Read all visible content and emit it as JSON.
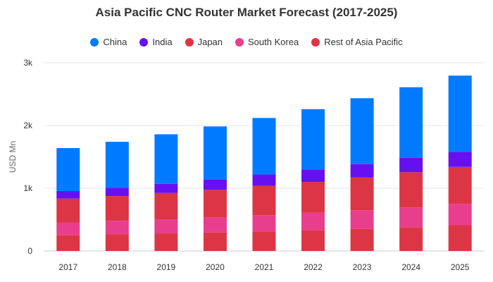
{
  "chart_data": {
    "type": "bar",
    "stacked": true,
    "title": "Asia Pacific CNC Router Market Forecast (2017-2025)",
    "xlabel": "",
    "ylabel": "USD Mn",
    "ylim": [
      0,
      3000
    ],
    "yticks": [
      0,
      1000,
      2000,
      3000
    ],
    "ytick_labels": [
      "0",
      "1k",
      "2k",
      "3k"
    ],
    "grid": true,
    "legend_position": "top",
    "categories": [
      "2017",
      "2018",
      "2019",
      "2020",
      "2021",
      "2022",
      "2023",
      "2024",
      "2025"
    ],
    "series": [
      {
        "name": "Rest of Asia Pacific",
        "color": "#dc3545",
        "values": [
          250,
          265,
          280,
          295,
          310,
          330,
          350,
          375,
          410
        ]
      },
      {
        "name": "South Korea",
        "color": "#e83e8c",
        "values": [
          205,
          215,
          225,
          240,
          260,
          280,
          300,
          320,
          340
        ]
      },
      {
        "name": "Japan",
        "color": "#dc3545",
        "values": [
          380,
          395,
          420,
          440,
          470,
          490,
          520,
          560,
          590
        ]
      },
      {
        "name": "India",
        "color": "#6610f2",
        "values": [
          120,
          130,
          145,
          160,
          180,
          200,
          215,
          230,
          240
        ]
      },
      {
        "name": "China",
        "color": "#007bff",
        "values": [
          685,
          735,
          790,
          850,
          900,
          960,
          1050,
          1125,
          1215
        ]
      }
    ]
  },
  "legend": [
    {
      "label": "China",
      "color": "#007bff"
    },
    {
      "label": "India",
      "color": "#6610f2"
    },
    {
      "label": "Japan",
      "color": "#dc3545"
    },
    {
      "label": "South Korea",
      "color": "#e83e8c"
    },
    {
      "label": "Rest of Asia Pacific",
      "color": "#dc3545"
    }
  ]
}
